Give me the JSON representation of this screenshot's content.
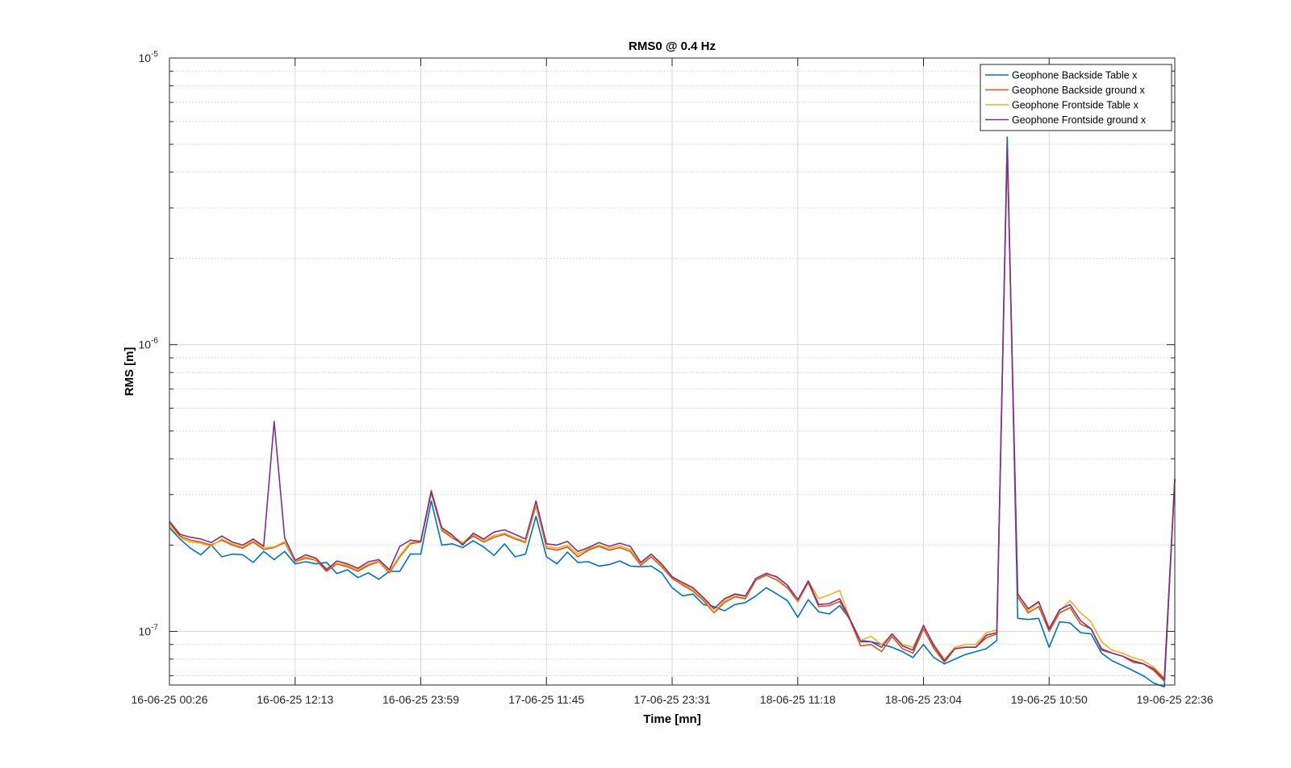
{
  "chart_data": {
    "type": "line",
    "title": "RMS0 @ 0.4 Hz",
    "xlabel": "Time [mn]",
    "ylabel": "RMS [m]",
    "yscale": "log",
    "ylim": [
      6.5e-08,
      1e-05
    ],
    "y_ticks": [
      {
        "value": 1e-07,
        "base": "10",
        "exp": "-7"
      },
      {
        "value": 1e-06,
        "base": "10",
        "exp": "-6"
      },
      {
        "value": 1e-05,
        "base": "10",
        "exp": "-5"
      }
    ],
    "x_ticks": [
      "16-06-25 00:26",
      "16-06-25 12:13",
      "16-06-25 23:59",
      "17-06-25 11:45",
      "17-06-25 23:31",
      "18-06-25 11:18",
      "18-06-25 23:04",
      "19-06-25 10:50",
      "19-06-25 22:36"
    ],
    "grid": true,
    "minor_grid_y": true,
    "legend_position": "top-right",
    "x_index_range": [
      0,
      96
    ],
    "series": [
      {
        "name": "Geophone Backside Table x",
        "color": "#0072bd",
        "values": [
          2.3e-07,
          2.1e-07,
          1.95e-07,
          1.85e-07,
          2e-07,
          1.82e-07,
          1.86e-07,
          1.85e-07,
          1.74e-07,
          1.9e-07,
          1.78e-07,
          1.9e-07,
          1.72e-07,
          1.75e-07,
          1.72e-07,
          1.74e-07,
          1.59e-07,
          1.64e-07,
          1.54e-07,
          1.6e-07,
          1.52e-07,
          1.62e-07,
          1.62e-07,
          1.86e-07,
          1.86e-07,
          2.85e-07,
          2e-07,
          2.02e-07,
          1.96e-07,
          2.07e-07,
          1.97e-07,
          1.84e-07,
          2.02e-07,
          1.82e-07,
          1.86e-07,
          2.52e-07,
          1.82e-07,
          1.72e-07,
          1.89e-07,
          1.74e-07,
          1.75e-07,
          1.69e-07,
          1.71e-07,
          1.76e-07,
          1.69e-07,
          1.68e-07,
          1.69e-07,
          1.6e-07,
          1.42e-07,
          1.33e-07,
          1.35e-07,
          1.24e-07,
          1.22e-07,
          1.18e-07,
          1.24e-07,
          1.26e-07,
          1.33e-07,
          1.42e-07,
          1.35e-07,
          1.28e-07,
          1.12e-07,
          1.29e-07,
          1.17e-07,
          1.15e-07,
          1.23e-07,
          1.1e-07,
          9.3e-08,
          9.2e-08,
          9e-08,
          8.8e-08,
          8.5e-08,
          8.1e-08,
          9e-08,
          8.1e-08,
          7.7e-08,
          8e-08,
          8.3e-08,
          8.5e-08,
          8.7e-08,
          9.3e-08,
          5.3e-06,
          1.11e-07,
          1.1e-07,
          1.11e-07,
          8.8e-08,
          1.08e-07,
          1.07e-07,
          9.9e-08,
          9.8e-08,
          8.4e-08,
          7.9e-08,
          7.6e-08,
          7.3e-08,
          7e-08,
          6.6e-08,
          6.4e-08,
          3.4e-07
        ]
      },
      {
        "name": "Geophone Backside ground x",
        "color": "#d95319",
        "values": [
          2.4e-07,
          2.15e-07,
          2.08e-07,
          2.05e-07,
          2e-07,
          2.08e-07,
          2e-07,
          1.95e-07,
          2.05e-07,
          1.93e-07,
          1.96e-07,
          2.04e-07,
          1.75e-07,
          1.8e-07,
          1.77e-07,
          1.62e-07,
          1.72e-07,
          1.68e-07,
          1.62e-07,
          1.7e-07,
          1.75e-07,
          1.6e-07,
          1.82e-07,
          2.02e-07,
          2.05e-07,
          3.05e-07,
          2.25e-07,
          2.12e-07,
          2.02e-07,
          2.15e-07,
          2.05e-07,
          2.13e-07,
          2.18e-07,
          2.1e-07,
          2.04e-07,
          2.75e-07,
          1.95e-07,
          1.92e-07,
          1.97e-07,
          1.82e-07,
          1.92e-07,
          1.98e-07,
          1.92e-07,
          1.96e-07,
          1.9e-07,
          1.7e-07,
          1.82e-07,
          1.68e-07,
          1.53e-07,
          1.45e-07,
          1.38e-07,
          1.28e-07,
          1.16e-07,
          1.26e-07,
          1.32e-07,
          1.3e-07,
          1.51e-07,
          1.57e-07,
          1.51e-07,
          1.42e-07,
          1.27e-07,
          1.48e-07,
          1.22e-07,
          1.23e-07,
          1.27e-07,
          1.09e-07,
          8.9e-08,
          9e-08,
          8.5e-08,
          9.6e-08,
          8.7e-08,
          8.4e-08,
          1.02e-07,
          8.7e-08,
          7.8e-08,
          8.7e-08,
          8.8e-08,
          8.8e-08,
          9.5e-08,
          9.8e-08,
          4.8e-06,
          1.32e-07,
          1.16e-07,
          1.22e-07,
          1e-07,
          1.16e-07,
          1.21e-07,
          1.06e-07,
          1.02e-07,
          8.6e-08,
          8.4e-08,
          8.2e-08,
          7.8e-08,
          7.7e-08,
          7.3e-08,
          6.7e-08,
          3.4e-07
        ]
      },
      {
        "name": "Geophone Frontside Table x",
        "color": "#edb120",
        "values": [
          2.35e-07,
          2.12e-07,
          2.05e-07,
          2.03e-07,
          1.98e-07,
          2.1e-07,
          2.02e-07,
          1.97e-07,
          2.07e-07,
          1.96e-07,
          1.97e-07,
          2.06e-07,
          1.76e-07,
          1.82e-07,
          1.78e-07,
          1.66e-07,
          1.73e-07,
          1.7e-07,
          1.64e-07,
          1.72e-07,
          1.76e-07,
          1.62e-07,
          1.84e-07,
          2.04e-07,
          2.07e-07,
          3.12e-07,
          2.28e-07,
          2.15e-07,
          2.04e-07,
          2.18e-07,
          2.08e-07,
          2.16e-07,
          2.2e-07,
          2.12e-07,
          2.06e-07,
          2.8e-07,
          1.98e-07,
          1.95e-07,
          2e-07,
          1.86e-07,
          1.94e-07,
          2e-07,
          1.95e-07,
          1.99e-07,
          1.93e-07,
          1.72e-07,
          1.86e-07,
          1.7e-07,
          1.55e-07,
          1.47e-07,
          1.4e-07,
          1.3e-07,
          1.17e-07,
          1.28e-07,
          1.34e-07,
          1.32e-07,
          1.53e-07,
          1.6e-07,
          1.54e-07,
          1.45e-07,
          1.28e-07,
          1.5e-07,
          1.3e-07,
          1.34e-07,
          1.39e-07,
          1.1e-07,
          9.3e-08,
          9.6e-08,
          9e-08,
          9.8e-08,
          9e-08,
          8.8e-08,
          1.04e-07,
          9e-08,
          8e-08,
          8.8e-08,
          9e-08,
          9e-08,
          9.9e-08,
          1.01e-07,
          4.8e-06,
          1.36e-07,
          1.18e-07,
          1.26e-07,
          1.03e-07,
          1.18e-07,
          1.28e-07,
          1.16e-07,
          1.08e-07,
          9.2e-08,
          8.6e-08,
          8.4e-08,
          8.1e-08,
          7.9e-08,
          7.5e-08,
          6.9e-08,
          3.4e-07
        ]
      },
      {
        "name": "Geophone Frontside ground x",
        "color": "#7e2f8e",
        "values": [
          2.42e-07,
          2.18e-07,
          2.13e-07,
          2.1e-07,
          2.04e-07,
          2.15e-07,
          2.05e-07,
          2e-07,
          2.1e-07,
          1.98e-07,
          5.4e-07,
          2.12e-07,
          1.77e-07,
          1.85e-07,
          1.8e-07,
          1.64e-07,
          1.76e-07,
          1.72e-07,
          1.66e-07,
          1.75e-07,
          1.78e-07,
          1.64e-07,
          1.98e-07,
          2.08e-07,
          2.06e-07,
          3.08e-07,
          2.3e-07,
          2.17e-07,
          2e-07,
          2.2e-07,
          2.1e-07,
          2.22e-07,
          2.26e-07,
          2.18e-07,
          2.1e-07,
          2.85e-07,
          2.02e-07,
          2e-07,
          2.06e-07,
          1.9e-07,
          1.96e-07,
          2.04e-07,
          1.98e-07,
          2.03e-07,
          1.98e-07,
          1.74e-07,
          1.86e-07,
          1.72e-07,
          1.55e-07,
          1.48e-07,
          1.42e-07,
          1.31e-07,
          1.2e-07,
          1.3e-07,
          1.35e-07,
          1.33e-07,
          1.53e-07,
          1.59e-07,
          1.55e-07,
          1.45e-07,
          1.29e-07,
          1.5e-07,
          1.24e-07,
          1.25e-07,
          1.3e-07,
          1.1e-07,
          9.2e-08,
          9.2e-08,
          8.8e-08,
          9.8e-08,
          8.9e-08,
          8.6e-08,
          1.05e-07,
          8.9e-08,
          7.9e-08,
          8.7e-08,
          8.8e-08,
          8.8e-08,
          9.7e-08,
          9.9e-08,
          5e-06,
          1.35e-07,
          1.2e-07,
          1.27e-07,
          1.02e-07,
          1.19e-07,
          1.24e-07,
          1.09e-07,
          1.02e-07,
          8.7e-08,
          8.4e-08,
          8.2e-08,
          7.9e-08,
          7.7e-08,
          7.4e-08,
          6.8e-08,
          3.4e-07
        ]
      }
    ]
  }
}
